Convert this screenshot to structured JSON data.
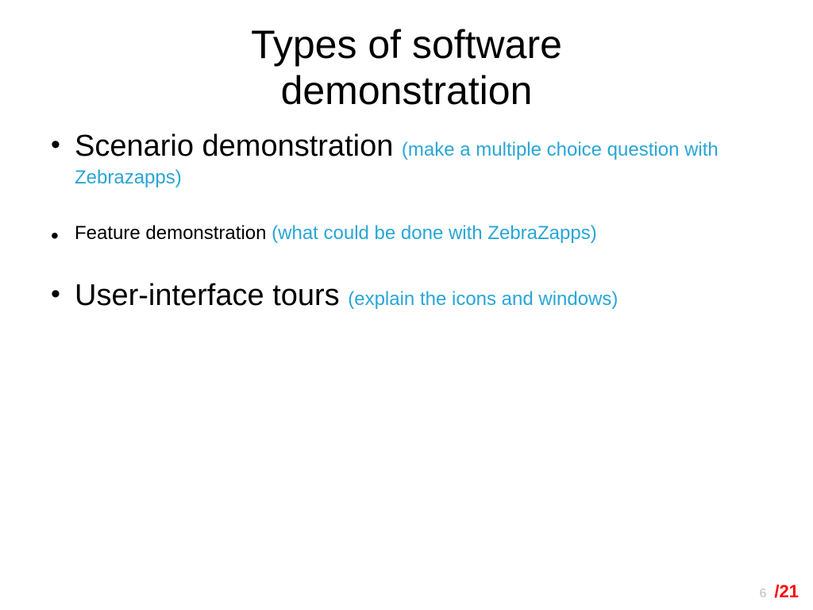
{
  "slide": {
    "title_line1": "Types of software",
    "title_line2": "demonstration",
    "bullets": [
      {
        "size": "big",
        "main": "Scenario demonstration ",
        "note": "(make a multiple choice question with Zebrazapps)"
      },
      {
        "size": "small",
        "main": "Feature demonstration ",
        "note": "(what could be done with ZebraZapps)"
      },
      {
        "size": "big",
        "main": "User-interface tours ",
        "note": "(explain the icons and windows)"
      }
    ]
  },
  "colors": {
    "text": "#000000",
    "note": "#2aa6d6",
    "page_current": "#bfbfbf",
    "page_total": "#ff0000",
    "background": "#ffffff"
  },
  "typography": {
    "title_fontsize": 50,
    "big_main_fontsize": 38,
    "note_fontsize": 24,
    "small_main_fontsize": 24,
    "footer_current_fontsize": 16,
    "footer_total_fontsize": 22,
    "font_family": "Verdana"
  },
  "footer": {
    "current_page": "6",
    "total_pages": "/21"
  }
}
